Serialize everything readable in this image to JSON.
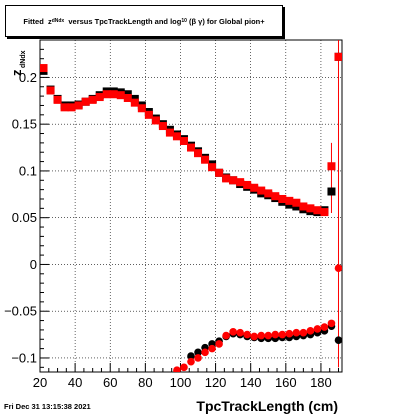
{
  "title": {
    "prefix": "Fitted",
    "z_symbol": "z",
    "z_subscript": "dNdx",
    "middle": "versus TpcTrackLength and log",
    "log_subscript": "10",
    "bracket_open": "(",
    "beta_gamma": "β γ",
    "bracket_close": ")",
    "suffix": "for Global pion+"
  },
  "timestamp": "Fri Dec 31 13:15:38 2021",
  "colors": {
    "series_black": "#000000",
    "series_red": "#ff0000",
    "grid": "#000000",
    "frame": "#000000"
  },
  "chart_data": {
    "type": "scatter",
    "title": "Fitted z_dNdx versus TpcTrackLength and log10(β γ) for Global pion+",
    "xlabel": "TpcTrackLength (cm)",
    "ylabel": "z_dNdx",
    "xlim": [
      20,
      192
    ],
    "ylim": [
      -0.115,
      0.24
    ],
    "xticks": [
      20,
      40,
      60,
      80,
      100,
      120,
      140,
      160,
      180
    ],
    "xtick_labels": [
      "20",
      "40",
      "60",
      "80",
      "100",
      "120",
      "140",
      "160",
      "180"
    ],
    "yticks": [
      -0.1,
      -0.05,
      0,
      0.05,
      0.1,
      0.15,
      0.2
    ],
    "ytick_labels": [
      "−0.1",
      "−0.05",
      "0",
      "0.05",
      "0.1",
      "0.15",
      "0.2"
    ],
    "grid": true,
    "series": [
      {
        "marker": "square",
        "color": "#000000",
        "x": [
          22,
          26,
          30,
          34,
          38,
          42,
          46,
          50,
          54,
          58,
          62,
          66,
          70,
          74,
          78,
          82,
          86,
          90,
          94,
          98,
          102,
          106,
          110,
          114,
          118,
          122,
          126,
          130,
          134,
          138,
          142,
          146,
          150,
          154,
          158,
          162,
          166,
          170,
          174,
          178,
          182,
          186,
          190
        ],
        "y": [
          0.207,
          0.187,
          0.177,
          0.17,
          0.17,
          0.171,
          0.174,
          0.177,
          0.181,
          0.185,
          0.185,
          0.184,
          0.182,
          0.177,
          0.17,
          0.163,
          0.156,
          0.15,
          0.144,
          0.139,
          0.134,
          0.127,
          0.121,
          0.114,
          0.107,
          0.098,
          0.093,
          0.09,
          0.086,
          0.083,
          0.08,
          0.076,
          0.074,
          0.071,
          0.067,
          0.064,
          0.062,
          0.059,
          0.057,
          0.056,
          0.058,
          0.078,
          0.222
        ]
      },
      {
        "marker": "circle",
        "color": "#000000",
        "x": [
          106,
          110,
          114,
          118,
          122,
          126,
          130,
          134,
          138,
          142,
          146,
          150,
          154,
          158,
          162,
          166,
          170,
          174,
          178,
          182,
          186,
          190
        ],
        "y": [
          -0.098,
          -0.094,
          -0.089,
          -0.085,
          -0.082,
          -0.077,
          -0.074,
          -0.075,
          -0.077,
          -0.078,
          -0.079,
          -0.079,
          -0.079,
          -0.078,
          -0.078,
          -0.077,
          -0.076,
          -0.075,
          -0.073,
          -0.071,
          -0.066,
          -0.081
        ]
      },
      {
        "marker": "square",
        "color": "#ff0000",
        "x": [
          22,
          26,
          30,
          34,
          38,
          42,
          46,
          50,
          54,
          58,
          62,
          66,
          70,
          74,
          78,
          82,
          86,
          90,
          94,
          98,
          102,
          106,
          110,
          114,
          118,
          122,
          126,
          130,
          134,
          138,
          142,
          146,
          150,
          154,
          158,
          162,
          166,
          170,
          174,
          178,
          182,
          186,
          190
        ],
        "y": [
          0.21,
          0.186,
          0.176,
          0.168,
          0.168,
          0.17,
          0.174,
          0.176,
          0.179,
          0.182,
          0.182,
          0.181,
          0.178,
          0.173,
          0.167,
          0.16,
          0.154,
          0.148,
          0.141,
          0.137,
          0.132,
          0.125,
          0.119,
          0.112,
          0.104,
          0.098,
          0.092,
          0.09,
          0.088,
          0.085,
          0.082,
          0.079,
          0.076,
          0.073,
          0.07,
          0.068,
          0.066,
          0.062,
          0.06,
          0.058,
          0.056,
          0.105,
          0.222
        ]
      },
      {
        "marker": "circle",
        "color": "#ff0000",
        "x": [
          98,
          102,
          106,
          110,
          114,
          118,
          122,
          126,
          130,
          134,
          138,
          142,
          146,
          150,
          154,
          158,
          162,
          166,
          170,
          174,
          178,
          182,
          186,
          190
        ],
        "y": [
          -0.113,
          -0.11,
          -0.104,
          -0.1,
          -0.094,
          -0.09,
          -0.085,
          -0.076,
          -0.072,
          -0.073,
          -0.075,
          -0.077,
          -0.076,
          -0.076,
          -0.075,
          -0.075,
          -0.074,
          -0.073,
          -0.073,
          -0.071,
          -0.069,
          -0.067,
          -0.063,
          -0.004
        ]
      }
    ],
    "error_bars": [
      {
        "x": 186,
        "y_low": 0.055,
        "y_high": 0.13,
        "color": "#ff0000"
      },
      {
        "x": 190,
        "y_low": -0.11,
        "y_high": 0.24,
        "color": "#ff0000"
      }
    ]
  }
}
